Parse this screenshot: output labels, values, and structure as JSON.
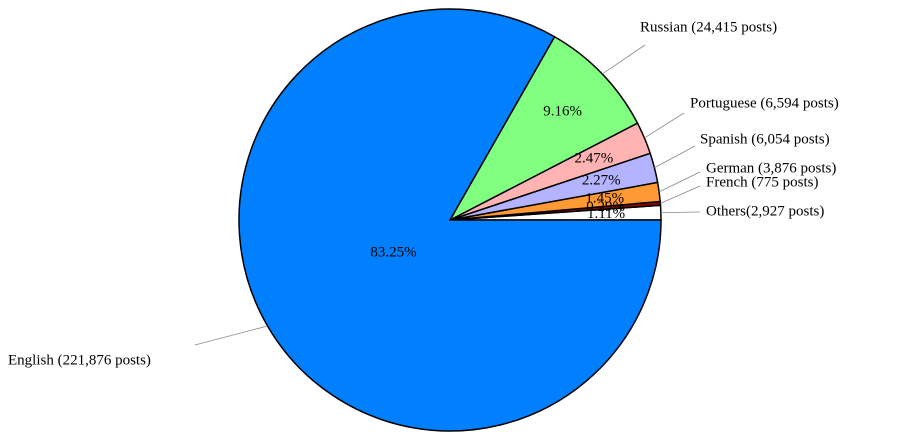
{
  "chart_data": {
    "type": "pie",
    "categories": [
      "Others(2,927 posts)",
      "French (775 posts)",
      "German (3,876 posts)",
      "Spanish (6,054 posts)",
      "Portuguese (6,594 posts)",
      "Russian (24,415 posts)",
      "English (221,876 posts)"
    ],
    "values": [
      1.11,
      0.29,
      1.45,
      2.27,
      2.47,
      9.16,
      83.25
    ],
    "value_labels": [
      "1.11%",
      "0.29%",
      "1.45%",
      "2.27%",
      "2.47%",
      "9.16%",
      "83.25%"
    ],
    "colors": [
      "#ffffff",
      "#8b0000",
      "#ff9933",
      "#b3b3ff",
      "#ffb3b3",
      "#80ff80",
      "#0080ff"
    ]
  }
}
